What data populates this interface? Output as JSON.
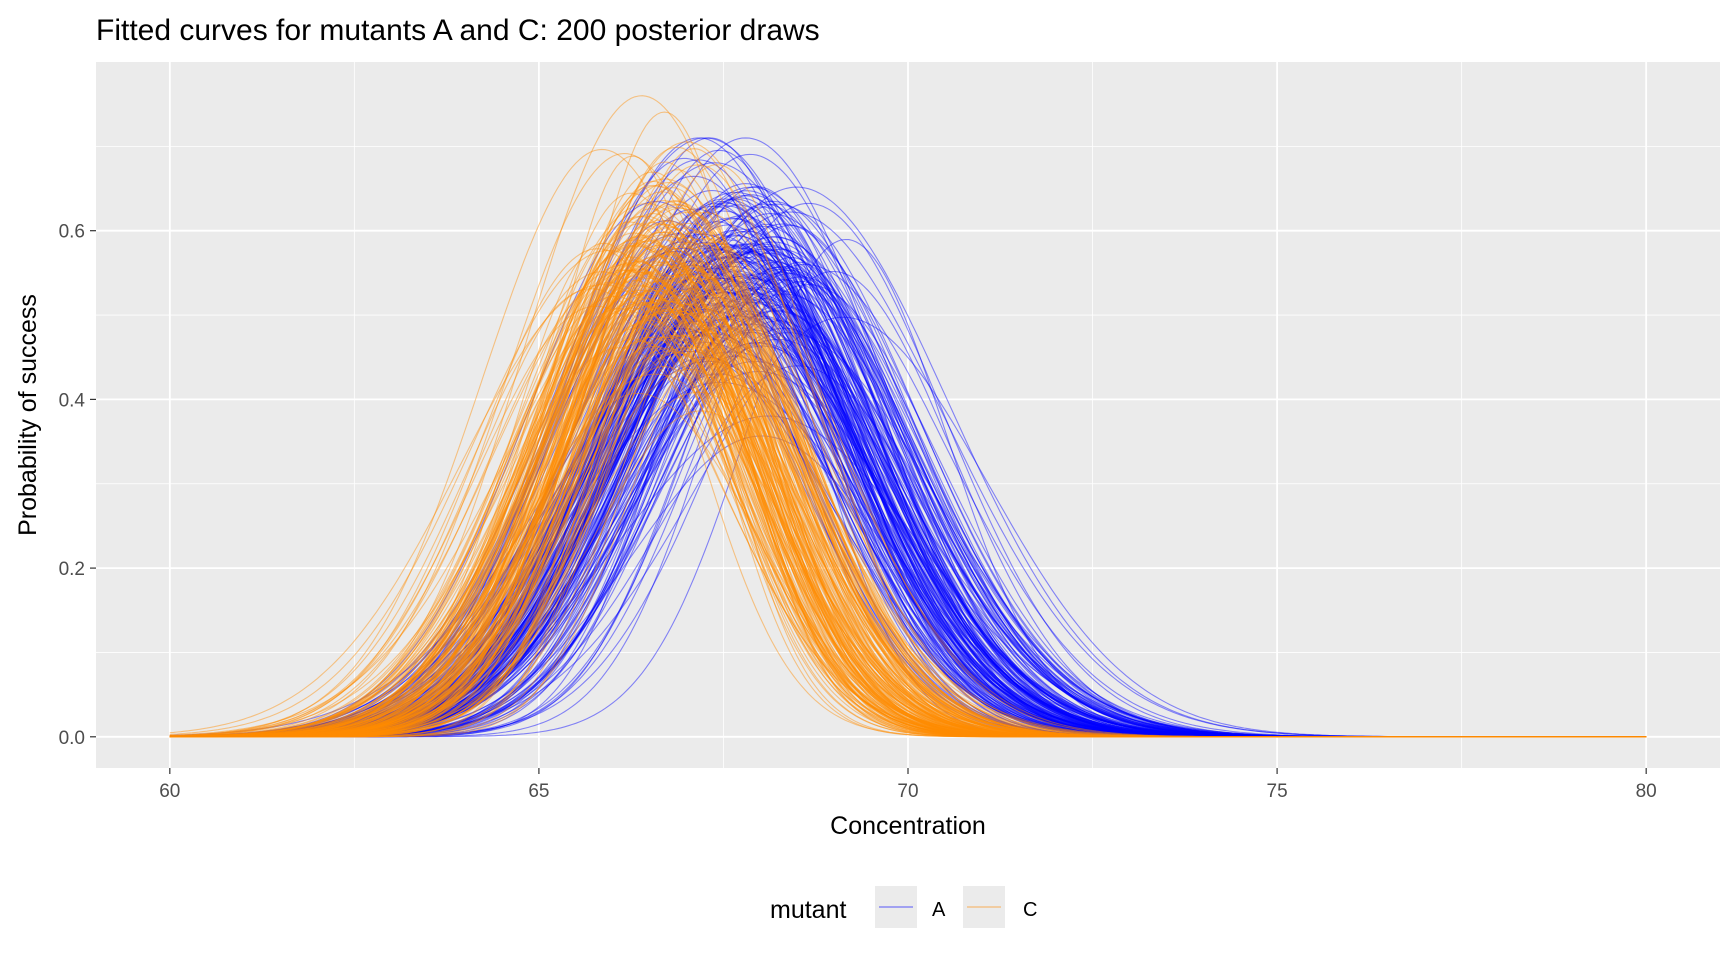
{
  "chart_data": {
    "type": "line",
    "title": "Fitted curves for mutants A and C: 200 posterior draws",
    "xlabel": "Concentration",
    "ylabel": "Probability of success",
    "xlim": [
      59,
      81
    ],
    "ylim": [
      -0.037,
      0.8
    ],
    "x_ticks": [
      60,
      65,
      70,
      75,
      80
    ],
    "y_ticks": [
      0.0,
      0.2,
      0.4,
      0.6
    ],
    "x_tick_labels": [
      "60",
      "65",
      "70",
      "75",
      "80"
    ],
    "y_tick_labels": [
      "0.0",
      "0.2",
      "0.4",
      "0.6"
    ],
    "x_range": [
      60,
      80
    ],
    "grid": true,
    "draws_per_series": 200,
    "legend": {
      "title": "mutant",
      "position": "bottom"
    },
    "series": [
      {
        "name": "A",
        "color": "#0000FF",
        "curve_peak_x": {
          "mean": 67.8,
          "sd": 0.45
        },
        "curve_peak_y": {
          "mean": 0.56,
          "sd": 0.07,
          "min": 0.26,
          "max": 0.71
        },
        "curve_width_sd": {
          "mean": 1.75,
          "sd": 0.18
        }
      },
      {
        "name": "C",
        "color": "#FF8C00",
        "curve_peak_x": {
          "mean": 66.7,
          "sd": 0.35
        },
        "curve_peak_y": {
          "mean": 0.56,
          "sd": 0.07,
          "min": 0.3,
          "max": 0.76
        },
        "curve_width_sd": {
          "mean": 1.45,
          "sd": 0.18
        }
      }
    ]
  }
}
